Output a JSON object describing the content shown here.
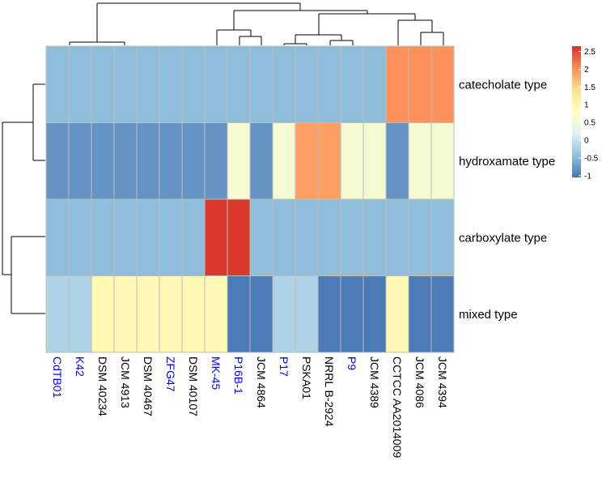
{
  "chart_data": {
    "type": "heatmap",
    "title": "",
    "columns": [
      "CdTB01",
      "K42",
      "DSM 40234",
      "JCM 4913",
      "DSM 40467",
      "ZFG47",
      "DSM 40107",
      "MK-45",
      "P16B-1",
      "JCM 4864",
      "P17",
      "PSKA01",
      "NRRL B-2924",
      "P9",
      "JCM 4389",
      "CCTCC AA2014009",
      "JCM 4086",
      "JCM 4394"
    ],
    "column_label_colors": [
      "#0000ff",
      "#0000ff",
      "#000000",
      "#000000",
      "#000000",
      "#0000ff",
      "#000000",
      "#0000ff",
      "#0000ff",
      "#000000",
      "#0000ff",
      "#000000",
      "#000000",
      "#0000ff",
      "#000000",
      "#000000",
      "#000000",
      "#000000"
    ],
    "rows": [
      "catecholate type",
      "hydroxamate type",
      "carboxylate type",
      "mixed type"
    ],
    "values": [
      [
        -0.45,
        -0.45,
        -0.45,
        -0.45,
        -0.45,
        -0.45,
        -0.45,
        -0.45,
        -0.45,
        -0.45,
        -0.45,
        -0.45,
        -0.45,
        -0.45,
        -0.45,
        2.0,
        2.0,
        2.0
      ],
      [
        -0.8,
        -0.8,
        -0.8,
        -0.8,
        -0.8,
        -0.8,
        -0.8,
        -0.8,
        0.6,
        -0.8,
        0.6,
        1.9,
        1.9,
        0.6,
        0.6,
        -0.8,
        0.6,
        0.6
      ],
      [
        -0.45,
        -0.45,
        -0.45,
        -0.45,
        -0.45,
        -0.45,
        -0.45,
        2.6,
        2.6,
        -0.45,
        -0.45,
        -0.45,
        -0.45,
        -0.45,
        -0.45,
        -0.45,
        -0.45,
        -0.45
      ],
      [
        -0.2,
        -0.2,
        0.95,
        0.95,
        0.95,
        0.95,
        0.95,
        0.95,
        -1.0,
        -1.0,
        -0.2,
        -0.2,
        -1.0,
        -1.0,
        -1.0,
        0.95,
        -1.0,
        -1.0
      ]
    ],
    "scale_ticks": [
      2.5,
      2,
      1.5,
      1,
      0.5,
      0,
      -0.5,
      -1
    ],
    "scale_tick_labels": [
      "2.5",
      "2",
      "1.5",
      "1",
      "0.5",
      "0",
      "-0.5",
      "-1"
    ],
    "scale_range": [
      -1.05,
      2.65
    ],
    "color_stops": [
      "#4575b4",
      "#91bfdb",
      "#e0f3f8",
      "#ffffbf",
      "#fee090",
      "#fc8d59",
      "#d73027"
    ],
    "cell_border_color": "#bdbdbd",
    "dendrogram_color": "#000000",
    "legend_position": "right"
  }
}
